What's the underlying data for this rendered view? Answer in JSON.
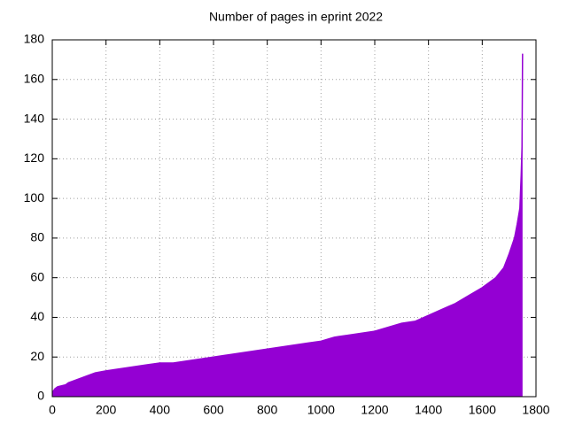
{
  "chart_data": {
    "type": "area",
    "title": "Number of pages in eprint 2022",
    "x": [
      0,
      5,
      10,
      20,
      50,
      60,
      80,
      100,
      120,
      140,
      160,
      200,
      250,
      300,
      350,
      400,
      450,
      500,
      550,
      600,
      650,
      700,
      750,
      800,
      850,
      900,
      950,
      1000,
      1050,
      1100,
      1150,
      1200,
      1250,
      1300,
      1350,
      1400,
      1450,
      1500,
      1550,
      1600,
      1650,
      1680,
      1700,
      1720,
      1730,
      1740,
      1745,
      1748,
      1750
    ],
    "values": [
      2,
      3,
      4,
      5,
      6,
      7,
      8,
      9,
      10,
      11,
      12,
      13,
      14,
      15,
      16,
      17,
      17,
      18,
      19,
      20,
      21,
      22,
      23,
      24,
      25,
      26,
      27,
      28,
      30,
      31,
      32,
      33,
      35,
      37,
      38,
      41,
      44,
      47,
      51,
      55,
      60,
      65,
      72,
      80,
      87,
      95,
      112,
      126,
      173
    ],
    "color": "#9400d3",
    "xlim": [
      0,
      1800
    ],
    "xticks": [
      0,
      200,
      400,
      600,
      800,
      1000,
      1200,
      1400,
      1600,
      1800
    ],
    "ylim": [
      0,
      180
    ],
    "yticks": [
      0,
      20,
      40,
      60,
      80,
      100,
      120,
      140,
      160,
      180
    ],
    "grid": true
  }
}
